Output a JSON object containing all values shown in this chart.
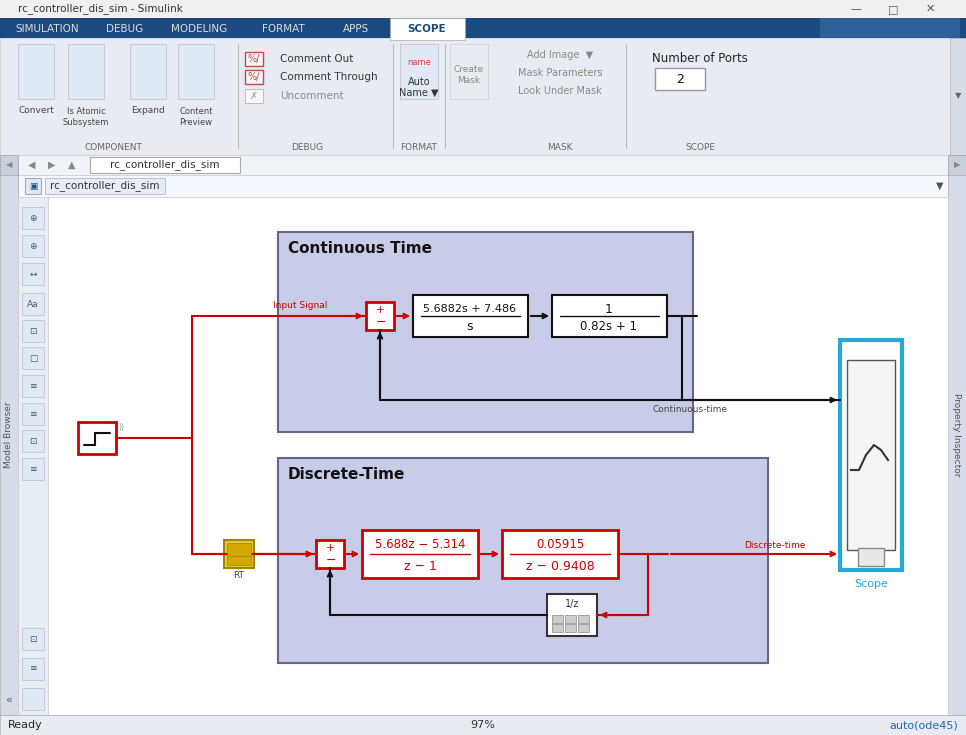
{
  "title_bar": "rc_controller_dis_sim - Simulink",
  "bg_titlebar": "#f0f0f0",
  "bg_ribbon": "#e8ecf0",
  "bg_canvas": "#ffffff",
  "bg_sidebar": "#e4eaf2",
  "bg_navbar": "#f5f5f5",
  "bg_breadcrumb": "#f0f3f8",
  "active_tab_bg": "#2060a0",
  "active_tab_fg": "#ffffff",
  "inactive_tab_fg": "#dddddd",
  "tab_bar_bg": "#1a4a80",
  "tabs": [
    "SIMULATION",
    "DEBUG",
    "MODELING",
    "FORMAT",
    "APPS",
    "SCOPE"
  ],
  "active_tab": "SCOPE",
  "subsystem_fill": "#c8cce8",
  "subsystem_edge": "#666688",
  "ct_title": "Continuous Time",
  "dt_title": "Discrete-Time",
  "ct_tf1_num": "5.6882s + 7.486",
  "ct_tf1_den": "s",
  "ct_tf2_num": "1",
  "ct_tf2_den": "0.82s + 1",
  "dt_tf1_num": "5.688z − 5.314",
  "dt_tf1_den": "z − 1",
  "dt_tf2_num": "0.05915",
  "dt_tf2_den": "z − 0.9408",
  "input_signal_label": "Input Signal",
  "ct_label": "Continuous-time",
  "dt_label": "Discrete-time",
  "scope_label": "Scope",
  "rt_label": "RT",
  "zoom_pct": "97%",
  "solver": "auto(ode45)",
  "ready": "Ready",
  "block_white": "#ffffff",
  "block_black": "#000000",
  "block_red": "#cc0000",
  "arrow_red": "#cc0000",
  "arrow_black": "#111111",
  "scope_border": "#29a8d8",
  "nav_path": "rc_controller_dis_sim",
  "rt_fill": "#e8c840",
  "status_bg": "#e8ecf0",
  "number_of_ports": "Number of Ports",
  "ports_val": "2"
}
